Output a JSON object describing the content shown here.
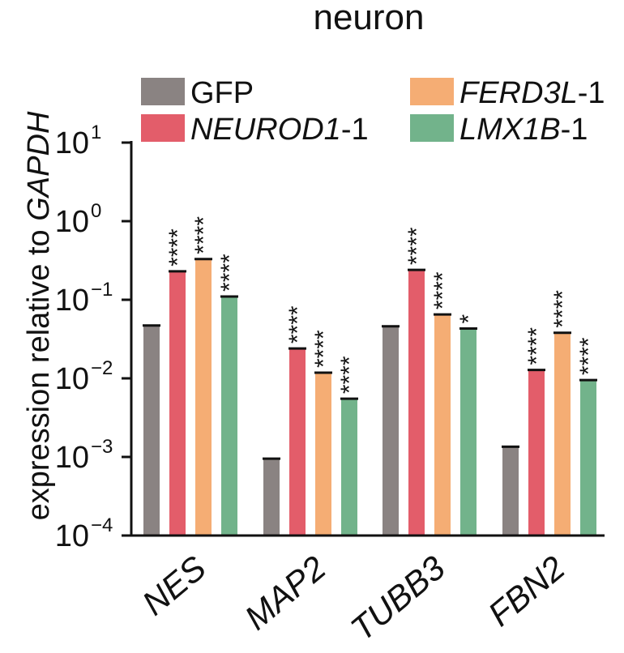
{
  "chart_data": {
    "type": "bar",
    "title": "neuron",
    "ylabel": {
      "prefix": "expression relative to ",
      "italic": "GAPDH"
    },
    "yscale": "log",
    "ylim": [
      0.0001,
      10
    ],
    "yticks": [
      {
        "value": 10,
        "base": "10",
        "exp": "1"
      },
      {
        "value": 1,
        "base": "10",
        "exp": "0"
      },
      {
        "value": 0.1,
        "base": "10",
        "exp": "−1"
      },
      {
        "value": 0.01,
        "base": "10",
        "exp": "−2"
      },
      {
        "value": 0.001,
        "base": "10",
        "exp": "−3"
      },
      {
        "value": 0.0001,
        "base": "10",
        "exp": "−4"
      }
    ],
    "categories": [
      "NES",
      "MAP2",
      "TUBB3",
      "FBN2"
    ],
    "legend_position": "top",
    "series": [
      {
        "name": "GFP",
        "name_italic": "",
        "name_suffix": "",
        "color": "#8a8382",
        "values": [
          0.047,
          0.00095,
          0.046,
          0.00135
        ],
        "significance": [
          "",
          "",
          "",
          ""
        ]
      },
      {
        "name": "",
        "name_italic": "NEUROD1",
        "name_suffix": "-1",
        "color": "#e35d6a",
        "values": [
          0.23,
          0.024,
          0.24,
          0.0128
        ],
        "significance": [
          "****",
          "****",
          "****",
          "****"
        ]
      },
      {
        "name": "",
        "name_italic": "FERD3L",
        "name_suffix": "-1",
        "color": "#f5ad74",
        "values": [
          0.33,
          0.0118,
          0.065,
          0.038
        ],
        "significance": [
          "****",
          "****",
          "****",
          "****"
        ]
      },
      {
        "name": "",
        "name_italic": "LMX1B",
        "name_suffix": "-1",
        "color": "#72b38b",
        "values": [
          0.11,
          0.0055,
          0.043,
          0.0095
        ],
        "significance": [
          "****",
          "****",
          "*",
          "****"
        ]
      }
    ]
  }
}
